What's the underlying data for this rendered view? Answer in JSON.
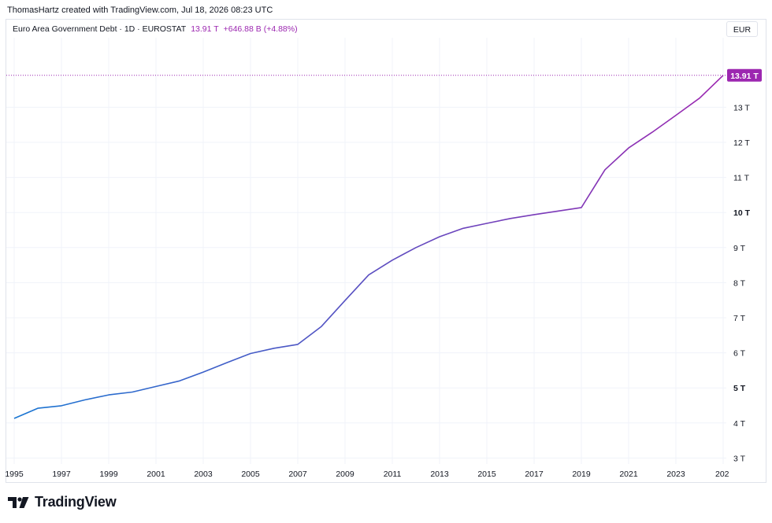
{
  "attribution": "ThomasHartz created with TradingView.com, Jul 18, 2026 08:23 UTC",
  "legend": {
    "symbol": "Euro Area Government Debt · 1D · EUROSTAT",
    "last_value": "13.91 T",
    "change": "+646.88 B (+4.88%)"
  },
  "currency_button": "EUR",
  "price_tag": "13.91 T",
  "brand": {
    "name": "TradingView",
    "logo_icon": "tradingview-logo-icon"
  },
  "colors": {
    "line_start": "#1976d2",
    "line_end": "#9c27b0",
    "price_tag": "#9c27b0"
  },
  "chart_data": {
    "type": "line",
    "title": "",
    "xlabel": "",
    "ylabel": "",
    "x_ticks": [
      "1995",
      "1997",
      "1999",
      "2001",
      "2003",
      "2005",
      "2007",
      "2009",
      "2011",
      "2013",
      "2015",
      "2017",
      "2019",
      "2021",
      "2023",
      "202"
    ],
    "y_ticks": [
      "3 T",
      "4 T",
      "5 T",
      "6 T",
      "7 T",
      "8 T",
      "9 T",
      "10 T",
      "11 T",
      "12 T",
      "13 T"
    ],
    "xlim": [
      1995,
      2025.1
    ],
    "ylim": [
      2.65,
      14.35
    ],
    "grid": true,
    "series": [
      {
        "name": "",
        "x": [
          1995,
          1996,
          1997,
          1998,
          1999,
          2000,
          2001,
          2002,
          2003,
          2004,
          2005,
          2006,
          2007,
          2008,
          2009,
          2010,
          2011,
          2012,
          2013,
          2014,
          2015,
          2016,
          2017,
          2018,
          2019,
          2020,
          2021,
          2022,
          2023,
          2024,
          2025
        ],
        "values": [
          4.13,
          4.42,
          4.49,
          4.66,
          4.8,
          4.88,
          5.04,
          5.2,
          5.45,
          5.72,
          5.98,
          6.13,
          6.24,
          6.75,
          7.49,
          8.22,
          8.64,
          9.0,
          9.31,
          9.55,
          9.69,
          9.83,
          9.94,
          10.04,
          10.14,
          11.22,
          11.84,
          12.29,
          12.77,
          13.26,
          13.91
        ]
      }
    ]
  }
}
